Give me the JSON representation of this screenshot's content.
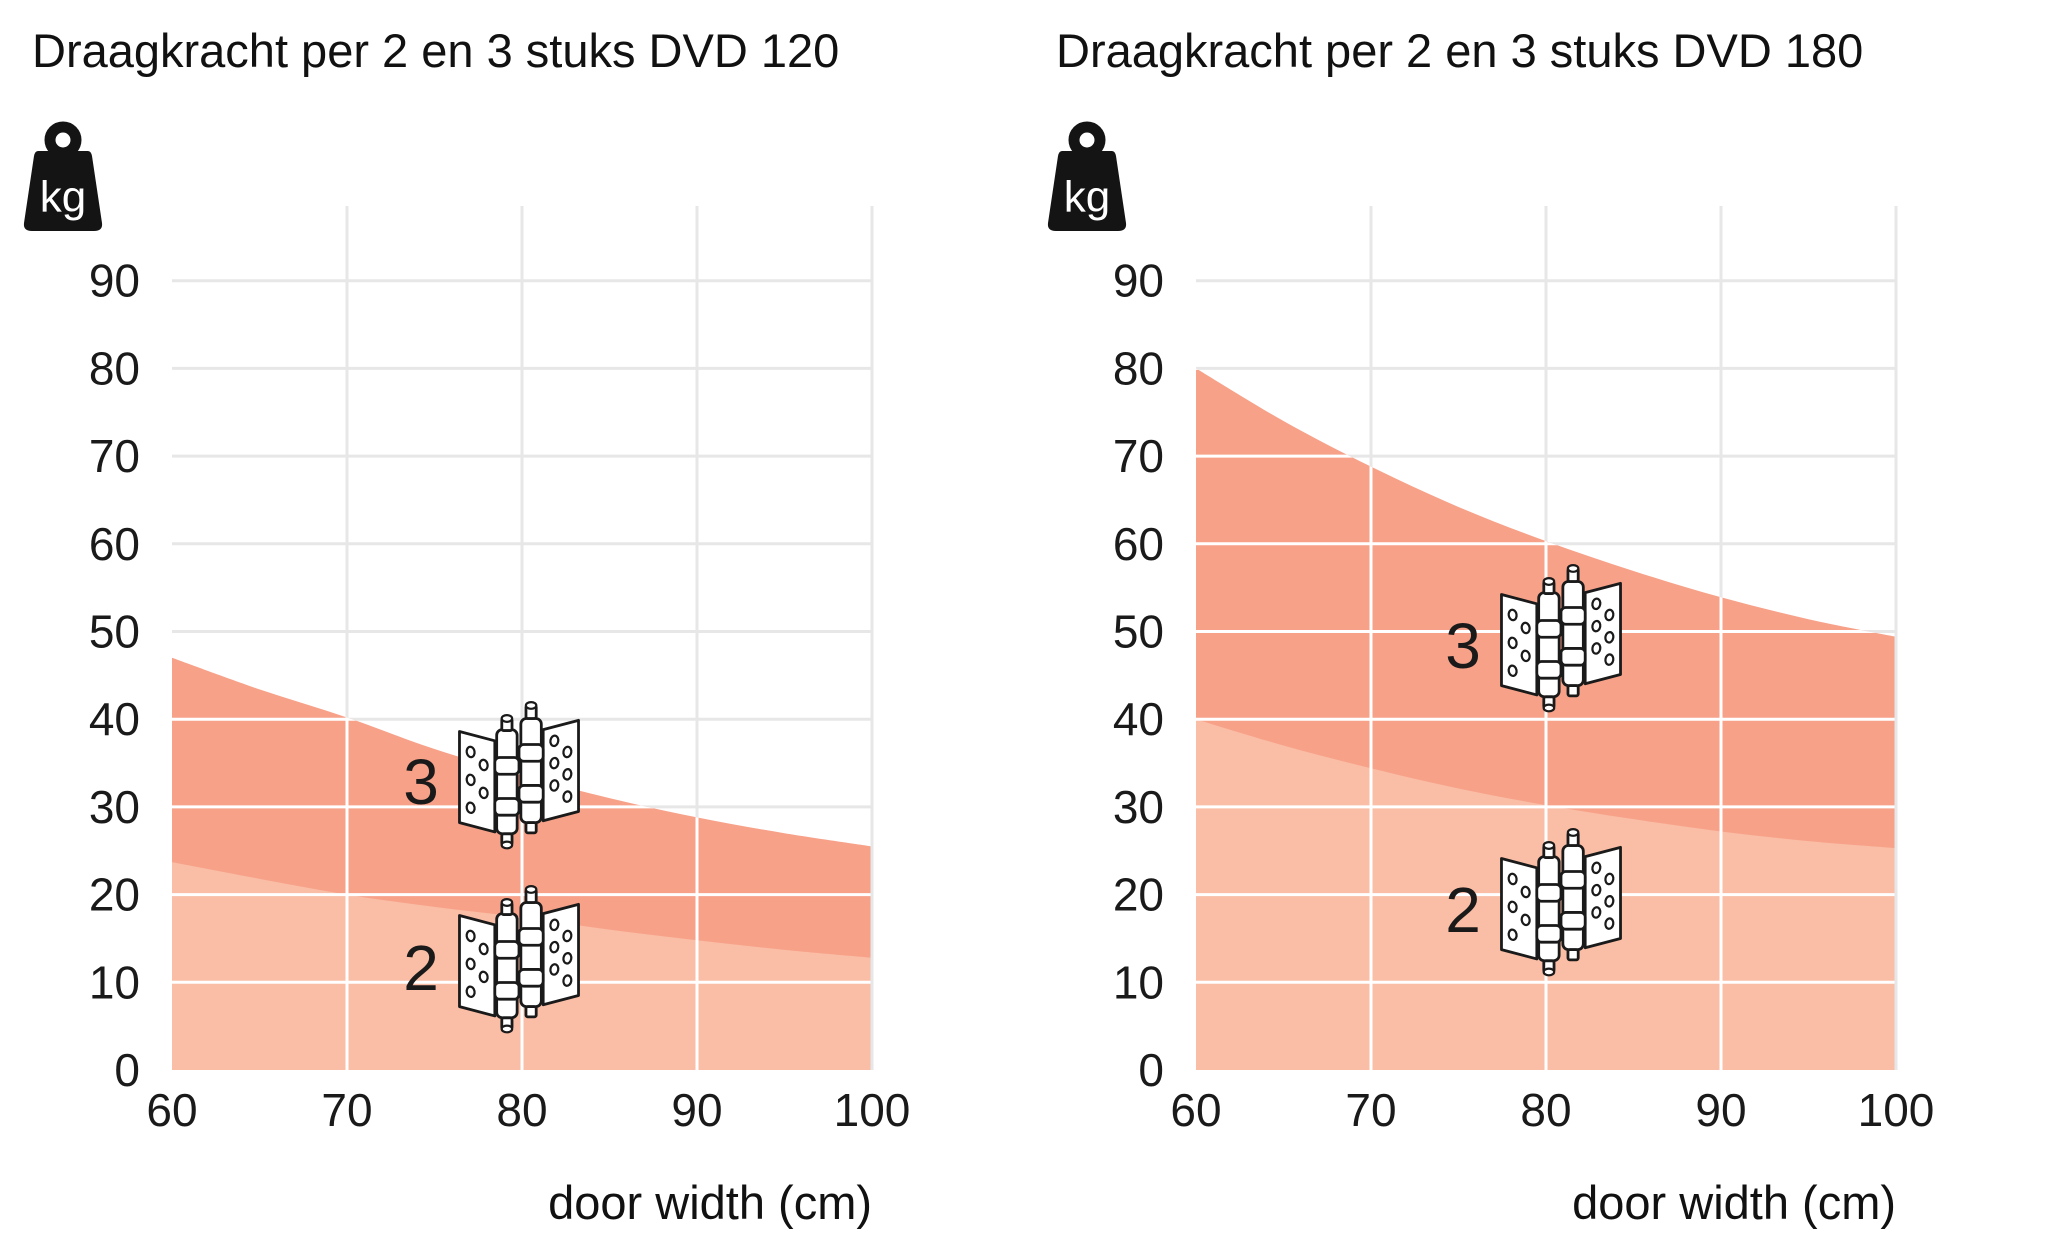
{
  "figure": {
    "background": "#ffffff",
    "grid_color": "#e7e7e7",
    "grid_color_over_fill": "#ffffff",
    "text_color": "#1a1a1a",
    "icon_color": "#141414"
  },
  "chart_data": [
    {
      "type": "area",
      "title": "Draagkracht per 2 en 3 stuks DVD 120",
      "xlabel": "door width (cm)",
      "y_unit": "kg",
      "y_unit_icon": "kg-weight-icon",
      "xlim": [
        60,
        100
      ],
      "ylim": [
        0,
        98.5
      ],
      "x_ticks": [
        60,
        70,
        80,
        90,
        100
      ],
      "y_ticks": [
        0,
        10,
        20,
        30,
        40,
        50,
        60,
        70,
        80,
        90
      ],
      "grid": true,
      "legend_position": "inline-icons",
      "x": [
        60,
        65,
        70,
        75,
        80,
        85,
        90,
        95,
        100
      ],
      "series": [
        {
          "name": "3 hinges",
          "label": "3",
          "icon": "hinge-pair-icon",
          "fill": "#f7a189",
          "values": [
            47.0,
            43.4,
            40.2,
            36.6,
            33.6,
            31.0,
            28.8,
            27.0,
            25.5
          ]
        },
        {
          "name": "2 hinges",
          "label": "2",
          "icon": "hinge-pair-icon",
          "fill": "#fabda5",
          "values": [
            23.7,
            21.8,
            20.0,
            18.6,
            17.4,
            16.0,
            14.8,
            13.7,
            12.8
          ]
        }
      ]
    },
    {
      "type": "area",
      "title": "Draagkracht per 2 en 3 stuks DVD 180",
      "xlabel": "door width (cm)",
      "y_unit": "kg",
      "y_unit_icon": "kg-weight-icon",
      "xlim": [
        60,
        100
      ],
      "ylim": [
        0,
        98.5
      ],
      "x_ticks": [
        60,
        70,
        80,
        90,
        100
      ],
      "y_ticks": [
        0,
        10,
        20,
        30,
        40,
        50,
        60,
        70,
        80,
        90
      ],
      "grid": true,
      "legend_position": "inline-icons",
      "x": [
        60,
        65,
        70,
        75,
        80,
        85,
        90,
        95,
        100
      ],
      "series": [
        {
          "name": "3 hinges",
          "label": "3",
          "icon": "hinge-pair-icon",
          "fill": "#f7a189",
          "values": [
            80.0,
            74.0,
            68.8,
            64.2,
            60.3,
            56.9,
            53.9,
            51.4,
            49.4
          ]
        },
        {
          "name": "2 hinges",
          "label": "2",
          "icon": "hinge-pair-icon",
          "fill": "#fabda5",
          "values": [
            40.0,
            37.0,
            34.4,
            32.1,
            30.2,
            28.6,
            27.2,
            26.1,
            25.3
          ]
        }
      ]
    }
  ]
}
